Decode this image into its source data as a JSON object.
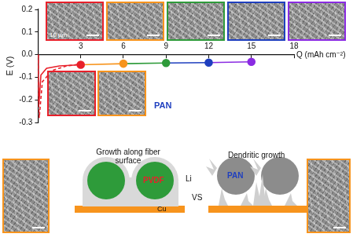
{
  "chart_data": {
    "type": "line",
    "y_label": "E (V)",
    "x_label": "Q (mAh cm⁻²)",
    "xlim": [
      0,
      18
    ],
    "xticks": [
      3,
      6,
      9,
      12,
      15,
      18
    ],
    "ylim": [
      -0.3,
      0.2
    ],
    "yticks": [
      -0.3,
      -0.2,
      -0.1,
      {
        "value": 0,
        "label": "0.0"
      },
      0.1,
      0.2
    ],
    "grid": false,
    "series": [
      {
        "type": "line",
        "color": "#e8202a",
        "line_style": "dashed",
        "marker": "none",
        "x": [
          0,
          0.03,
          0.08,
          0.3,
          1,
          2,
          3.2
        ],
        "values": [
          0,
          -0.2,
          -0.28,
          -0.12,
          -0.07,
          -0.05,
          -0.04
        ]
      },
      {
        "type": "line",
        "color": "#e8202a",
        "line_style": "solid",
        "marker": "none",
        "x": [
          0,
          0.02,
          0.06,
          0.2,
          0.6,
          1.5,
          3
        ],
        "values": [
          0,
          -0.15,
          -0.22,
          -0.09,
          -0.06,
          -0.05,
          -0.045
        ]
      },
      {
        "type": "line",
        "color": "#f7941d",
        "line_style": "solid",
        "marker": "none",
        "x": [
          3,
          6
        ],
        "values": [
          -0.045,
          -0.04
        ]
      },
      {
        "type": "line",
        "color": "#2e9b3a",
        "line_style": "solid",
        "marker": "none",
        "x": [
          6,
          9
        ],
        "values": [
          -0.04,
          -0.037
        ]
      },
      {
        "type": "line",
        "color": "#1f3fbf",
        "line_style": "solid",
        "marker": "none",
        "x": [
          9,
          12
        ],
        "values": [
          -0.037,
          -0.035
        ]
      },
      {
        "type": "line",
        "color": "#8a2be2",
        "line_style": "solid",
        "marker": "none",
        "x": [
          12,
          15
        ],
        "values": [
          -0.035,
          -0.032
        ]
      },
      {
        "type": "scatter",
        "marker": "circle",
        "line_style": "none",
        "colors": [
          "#e8202a",
          "#f7941d",
          "#2e9b3a",
          "#1f3fbf",
          "#8a2be2"
        ],
        "x": [
          3,
          6,
          9,
          12,
          15
        ],
        "values": [
          -0.045,
          -0.04,
          -0.037,
          -0.035,
          -0.032
        ]
      }
    ],
    "annotations": [
      {
        "text": "PAN",
        "color": "#1f3fbf"
      }
    ]
  },
  "images": {
    "top": [
      {
        "color": "#e8202a",
        "scale_bar": "10 µm"
      },
      {
        "color": "#f7941d"
      },
      {
        "color": "#2e9b3a"
      },
      {
        "color": "#1f3fbf"
      },
      {
        "color": "#8a2be2"
      }
    ],
    "bottom": [
      {
        "color": "#e8202a"
      },
      {
        "color": "#f7941d"
      }
    ],
    "schematic": [
      {
        "color": "#f7941d"
      },
      {
        "color": "#f7941d"
      }
    ]
  },
  "schematic": {
    "left_text": "Growth along fiber surface",
    "right_text": "Dendritic growth",
    "vs": "VS",
    "li": "Li",
    "cu": "Cu",
    "left_fiber": {
      "label": "PVDF",
      "color": "#2e9b3a",
      "label_color": "#e8202a"
    },
    "right_fiber": {
      "label": "PAN",
      "color": "#8c8c8c",
      "label_color": "#1f3fbf"
    }
  }
}
